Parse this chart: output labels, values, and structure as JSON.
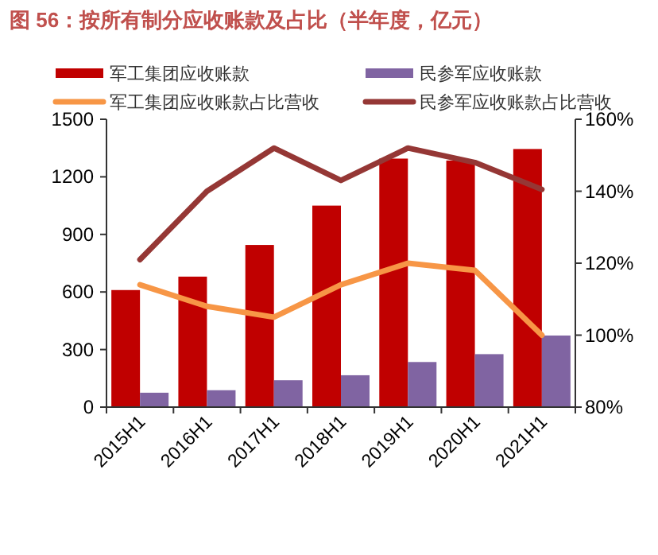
{
  "chart_data": {
    "type": "bar",
    "title": "图 56：按所有制分应收账款及占比（半年度，亿元）",
    "categories": [
      "2015H1",
      "2016H1",
      "2017H1",
      "2018H1",
      "2019H1",
      "2020H1",
      "2021H1"
    ],
    "series": [
      {
        "name": "军工集团应收账款",
        "color": "#c00000",
        "values": [
          610,
          680,
          845,
          1050,
          1295,
          1285,
          1345
        ]
      },
      {
        "name": "民参军应收账款",
        "color": "#8064a2",
        "values": [
          75,
          88,
          140,
          166,
          235,
          276,
          373
        ]
      },
      {
        "name": "军工集团应收账款占比营收",
        "type": "line",
        "axis": "y2",
        "color": "#f79646",
        "values": [
          114,
          108,
          105,
          114,
          120,
          118,
          100
        ]
      },
      {
        "name": "民参军应收账款占比营收",
        "type": "line",
        "axis": "y2",
        "color": "#953735",
        "values": [
          121,
          140,
          152,
          143,
          152,
          148,
          140.5
        ]
      }
    ],
    "ylim": [
      0,
      1500
    ],
    "yticks": [
      0,
      300,
      600,
      900,
      1200,
      1500
    ],
    "y2lim": [
      80,
      160
    ],
    "y2ticks": [
      {
        "value": 80,
        "label": "80%"
      },
      {
        "value": 100,
        "label": "100%"
      },
      {
        "value": 120,
        "label": "120%"
      },
      {
        "value": 140,
        "label": "140%"
      },
      {
        "value": 160,
        "label": "160%"
      }
    ],
    "grid": false,
    "legend": "top"
  }
}
